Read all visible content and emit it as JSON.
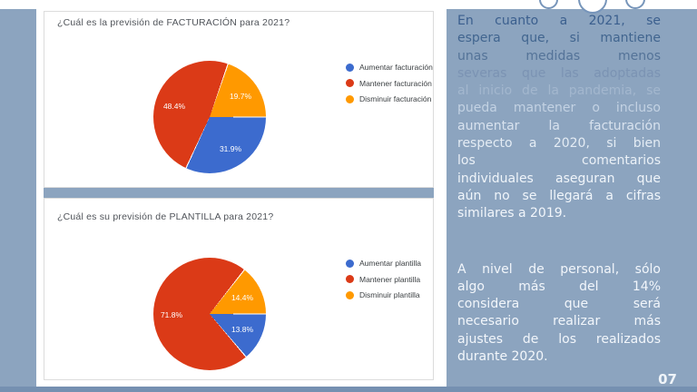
{
  "slide": {
    "page_number": "07",
    "background_color": "#8CA4BF",
    "footer_bar_color": "#7590B1",
    "accent_circle_color": "#7795BA"
  },
  "cards": [
    {
      "question": "¿Cuál es la previsión de FACTURACIÓN para 2021?",
      "legend": [
        {
          "label": "Aumentar facturación"
        },
        {
          "label": "Mantener facturación"
        },
        {
          "label": "Disminuir facturación"
        }
      ],
      "slice_labels": [
        "31.9%",
        "48.4%",
        "19.7%"
      ]
    },
    {
      "question": "¿Cuál es su previsión de PLANTILLA para 2021?",
      "legend": [
        {
          "label": "Aumentar plantilla"
        },
        {
          "label": "Mantener plantilla"
        },
        {
          "label": "Disminuir plantilla"
        }
      ],
      "slice_labels": [
        "13.8%",
        "71.8%",
        "14.4%"
      ]
    }
  ],
  "chart_data": [
    {
      "type": "pie",
      "title": "¿Cuál es la previsión de FACTURACIÓN para 2021?",
      "labels": [
        "Aumentar facturación",
        "Mantener facturación",
        "Disminuir facturación"
      ],
      "values": [
        31.9,
        48.4,
        19.7
      ],
      "colors": [
        "#3C6BCE",
        "#DB3A17",
        "#FF9900"
      ],
      "legend_position": "right",
      "data_labels": "percent",
      "start_angle_deg": 90,
      "direction": "clockwise"
    },
    {
      "type": "pie",
      "title": "¿Cuál es su previsión de PLANTILLA para 2021?",
      "labels": [
        "Aumentar plantilla",
        "Mantener plantilla",
        "Disminuir plantilla"
      ],
      "values": [
        13.8,
        71.8,
        14.4
      ],
      "colors": [
        "#3C6BCE",
        "#DB3A17",
        "#FF9900"
      ],
      "legend_position": "right",
      "data_labels": "percent",
      "start_angle_deg": 90,
      "direction": "clockwise"
    }
  ],
  "right_panel": {
    "paragraphs": [
      {
        "text": "En cuanto a 2021, se espera que, si mantiene unas medidas menos severas que las adoptadas al inicio de la pandemia, se pueda mantener o incluso aumentar la facturación respecto a 2020, si bien los comentarios individuales aseguran que aún no se llegará a cifras similares a 2019.",
        "lines": [
          "En cuanto a 2021, se",
          "espera que, si mantiene",
          "unas medidas menos",
          "severas que las adoptadas",
          "al inicio de la pandemia, se",
          "pueda mantener o incluso",
          "aumentar la facturación",
          "respecto a 2020, si bien",
          "los comentarios",
          "individuales aseguran que",
          "aún no se llegará a cifras",
          "similares a 2019."
        ]
      },
      {
        "text": "A nivel de personal, sólo algo más del 14% considera que será necesario realizar más ajustes de los realizados durante 2020.",
        "lines": [
          "A nivel de personal, sólo",
          "algo más del 14%",
          "considera que será",
          "necesario realizar más",
          "ajustes de los realizados",
          "durante 2020."
        ]
      }
    ],
    "line_colors_p1": [
      "#3B5F8E",
      "#41658F",
      "#547398",
      "#7B93B3",
      "#A3B7CE",
      "#C3D2E3",
      "#D8E2EE",
      "#E4ECF4",
      "#EBF1F7",
      "#F0F5FA",
      "#F1F6FB",
      "#F2F6FB"
    ],
    "line_colors_p2": [
      "#F2F6FB",
      "#F2F6FB",
      "#F2F6FB",
      "#F2F6FB",
      "#F2F6FB",
      "#F3F7FB"
    ]
  }
}
